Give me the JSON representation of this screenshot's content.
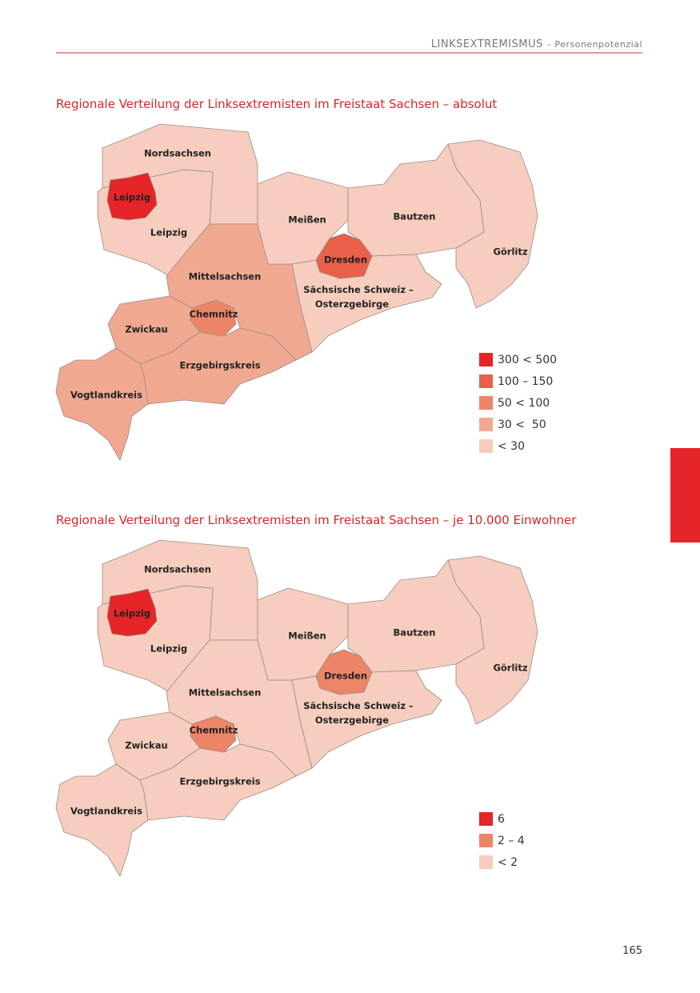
{
  "header": {
    "title": "LINKSEXTREMISMUS",
    "subtitle": "– Personenpotenzial"
  },
  "maps": [
    {
      "title": "Regionale Verteilung der Linksextremisten im Freistaat Sachsen – absolut",
      "regions": [
        {
          "label": "Nordsachsen",
          "level": 4
        },
        {
          "label": "Leipzig",
          "level": 4
        },
        {
          "label": "Leipzig",
          "level": 0
        },
        {
          "label": "Mittelsachsen",
          "level": 3
        },
        {
          "label": "Meißen",
          "level": 4
        },
        {
          "label": "Bautzen",
          "level": 4
        },
        {
          "label": "Görlitz",
          "level": 4
        },
        {
          "label": "Sächsische Schweiz – Osterzgebirge",
          "level": 4
        },
        {
          "label": "Dresden",
          "level": 1
        },
        {
          "label": "Zwickau",
          "level": 3
        },
        {
          "label": "Erzgebirgskreis",
          "level": 3
        },
        {
          "label": "Chemnitz",
          "level": 2
        },
        {
          "label": "Vogtlandkreis",
          "level": 3
        }
      ],
      "legend": [
        {
          "label": "300 < 500",
          "color": "#e52528"
        },
        {
          "label": "100 – 150",
          "color": "#e8604a"
        },
        {
          "label": "50 < 100",
          "color": "#ec8468"
        },
        {
          "label": "30 <  50",
          "color": "#f0a890"
        },
        {
          "label": "< 30",
          "color": "#f6cdbe"
        }
      ]
    },
    {
      "title": "Regionale Verteilung der Linksextremisten im Freistaat Sachsen – je 10.000 Einwohner",
      "regions": [
        {
          "label": "Nordsachsen",
          "level": 2
        },
        {
          "label": "Leipzig",
          "level": 2
        },
        {
          "label": "Leipzig",
          "level": 0
        },
        {
          "label": "Mittelsachsen",
          "level": 2
        },
        {
          "label": "Meißen",
          "level": 2
        },
        {
          "label": "Bautzen",
          "level": 2
        },
        {
          "label": "Görlitz",
          "level": 2
        },
        {
          "label": "Sächsische Schweiz – Osterzgebirge",
          "level": 2
        },
        {
          "label": "Dresden",
          "level": 1
        },
        {
          "label": "Zwickau",
          "level": 2
        },
        {
          "label": "Erzgebirgskreis",
          "level": 2
        },
        {
          "label": "Chemnitz",
          "level": 1
        },
        {
          "label": "Vogtlandkreis",
          "level": 2
        }
      ],
      "legend": [
        {
          "label": "6",
          "color": "#e52528"
        },
        {
          "label": "2 – 4",
          "color": "#ec8468"
        },
        {
          "label": "< 2",
          "color": "#f6cdbe"
        }
      ]
    }
  ],
  "page_number": "165"
}
